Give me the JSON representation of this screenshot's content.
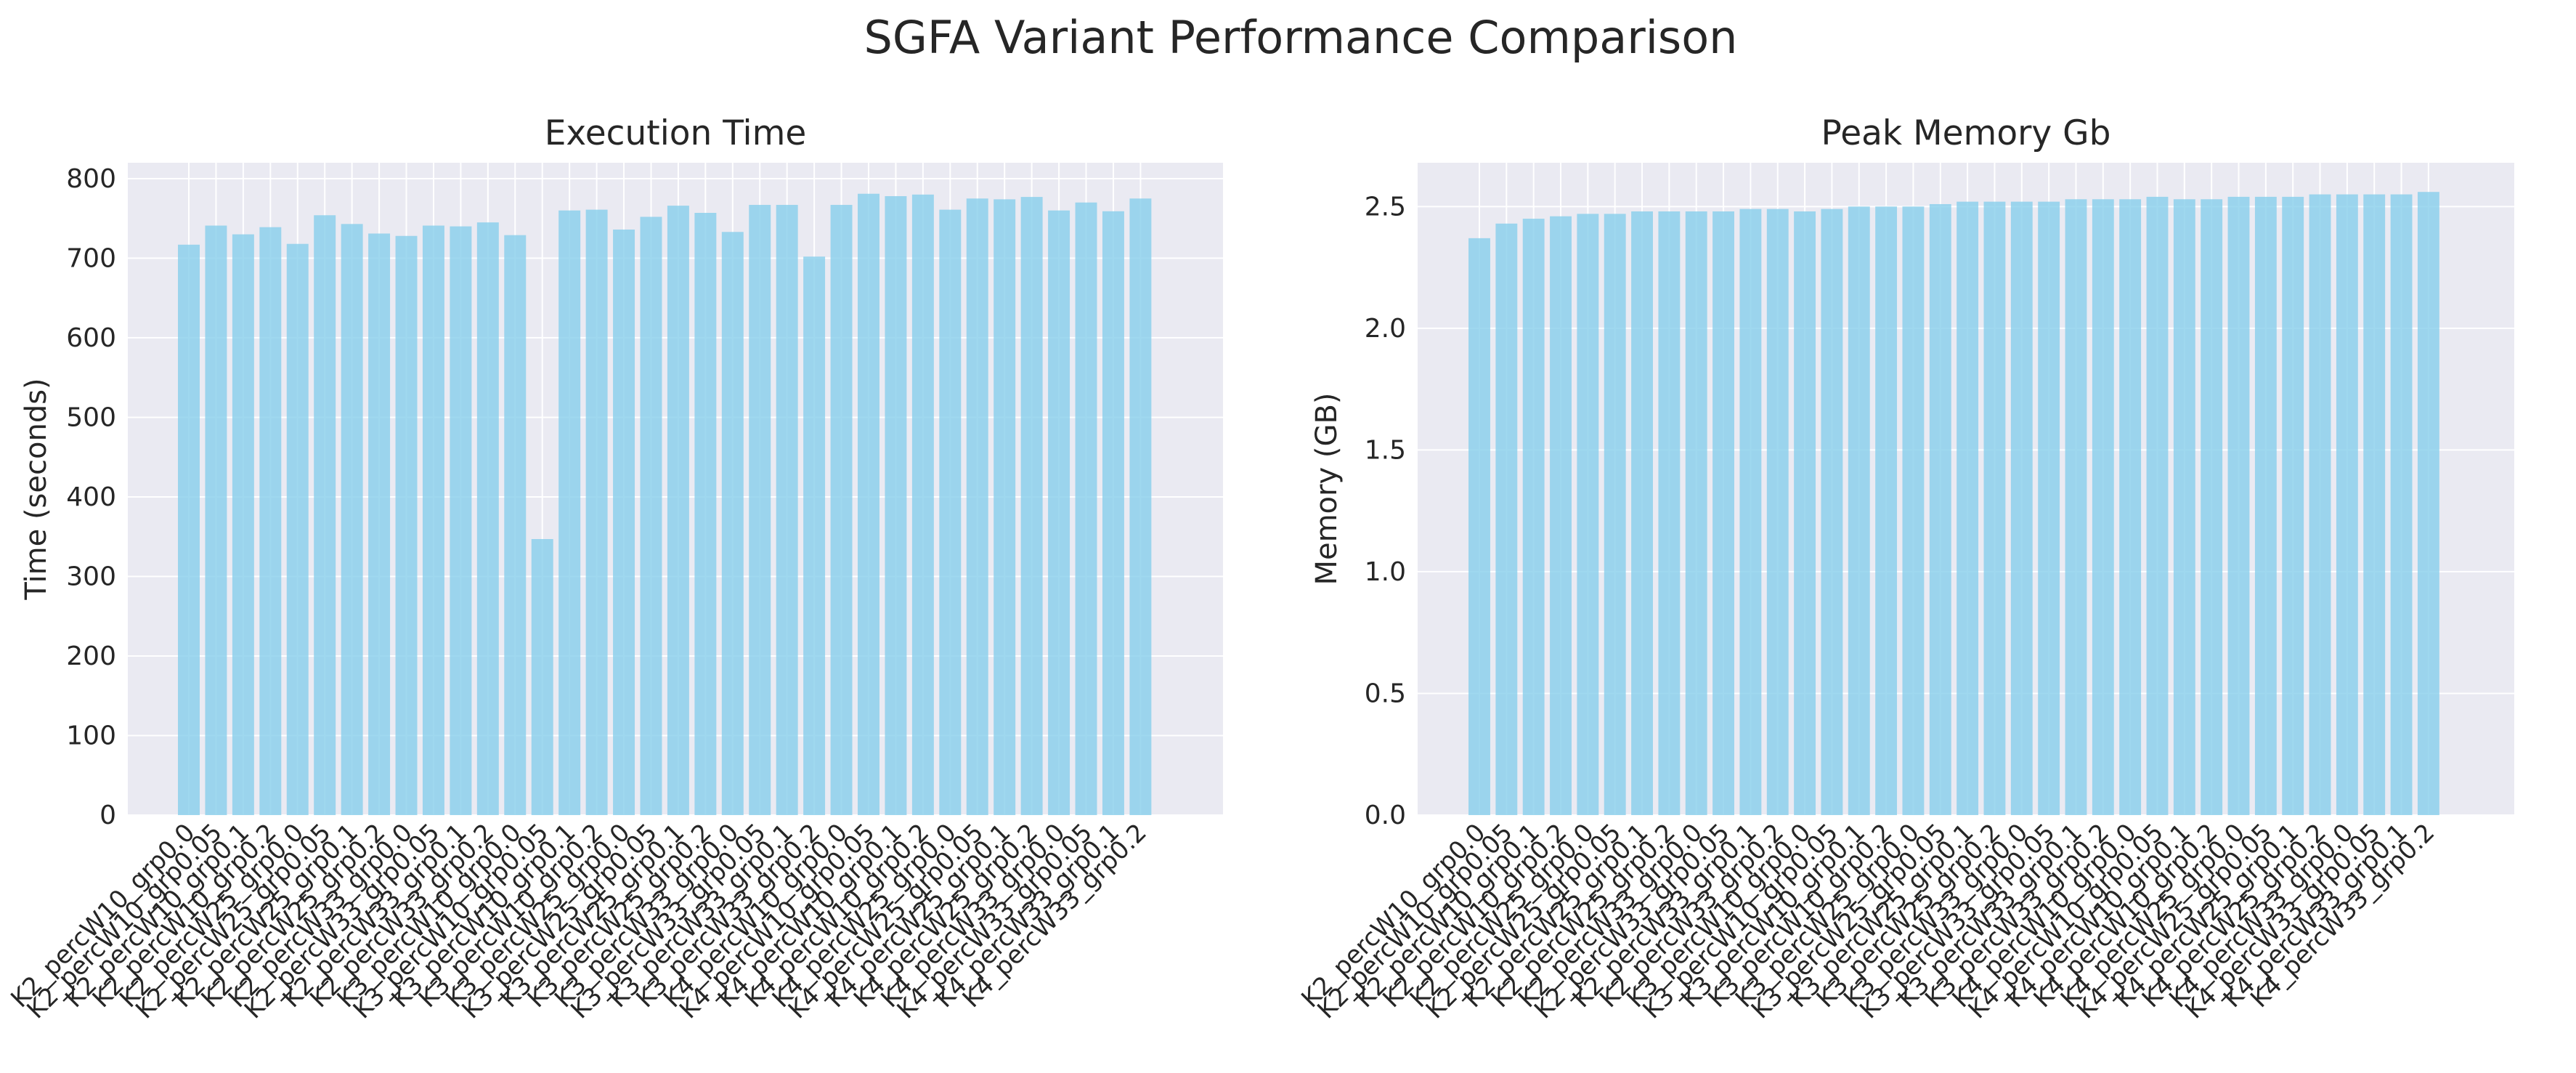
{
  "figure": {
    "title": "SGFA Variant Performance Comparison"
  },
  "chart_data": [
    {
      "type": "bar",
      "title": "Execution Time",
      "xlabel": "",
      "ylabel": "Time (seconds)",
      "ylim": [
        0,
        820
      ],
      "yticks": [
        0,
        100,
        200,
        300,
        400,
        500,
        600,
        700,
        800
      ],
      "grid": true,
      "color": "#87CEEB",
      "categories": [
        "K2_percW10_grp0.0",
        "K2_percW10_grp0.05",
        "K2_percW10_grp0.1",
        "K2_percW10_grp0.2",
        "K2_percW25_grp0.0",
        "K2_percW25_grp0.05",
        "K2_percW25_grp0.1",
        "K2_percW25_grp0.2",
        "K2_percW33_grp0.0",
        "K2_percW33_grp0.05",
        "K2_percW33_grp0.1",
        "K2_percW33_grp0.2",
        "K3_percW10_grp0.0",
        "K3_percW10_grp0.05",
        "K3_percW10_grp0.1",
        "K3_percW10_grp0.2",
        "K3_percW25_grp0.0",
        "K3_percW25_grp0.05",
        "K3_percW25_grp0.1",
        "K3_percW25_grp0.2",
        "K3_percW33_grp0.0",
        "K3_percW33_grp0.05",
        "K3_percW33_grp0.1",
        "K3_percW33_grp0.2",
        "K4_percW10_grp0.0",
        "K4_percW10_grp0.05",
        "K4_percW10_grp0.1",
        "K4_percW10_grp0.2",
        "K4_percW25_grp0.0",
        "K4_percW25_grp0.05",
        "K4_percW25_grp0.1",
        "K4_percW25_grp0.2",
        "K4_percW33_grp0.0",
        "K4_percW33_grp0.05",
        "K4_percW33_grp0.1",
        "K4_percW33_grp0.2"
      ],
      "values": [
        717,
        741,
        730,
        739,
        718,
        754,
        743,
        731,
        728,
        741,
        740,
        745,
        729,
        347,
        760,
        761,
        736,
        752,
        766,
        757,
        733,
        767,
        767,
        702,
        767,
        781,
        778,
        780,
        761,
        775,
        774,
        777,
        760,
        770,
        759,
        775
      ]
    },
    {
      "type": "bar",
      "title": "Peak Memory Gb",
      "xlabel": "",
      "ylabel": "Memory (GB)",
      "ylim": [
        0,
        2.68
      ],
      "yticks": [
        "0.0",
        "0.5",
        "1.0",
        "1.5",
        "2.0",
        "2.5"
      ],
      "grid": true,
      "color": "#87CEEB",
      "categories": [
        "K2_percW10_grp0.0",
        "K2_percW10_grp0.05",
        "K2_percW10_grp0.1",
        "K2_percW10_grp0.2",
        "K2_percW25_grp0.0",
        "K2_percW25_grp0.05",
        "K2_percW25_grp0.1",
        "K2_percW25_grp0.2",
        "K2_percW33_grp0.0",
        "K2_percW33_grp0.05",
        "K2_percW33_grp0.1",
        "K2_percW33_grp0.2",
        "K3_percW10_grp0.0",
        "K3_percW10_grp0.05",
        "K3_percW10_grp0.1",
        "K3_percW10_grp0.2",
        "K3_percW25_grp0.0",
        "K3_percW25_grp0.05",
        "K3_percW25_grp0.1",
        "K3_percW25_grp0.2",
        "K3_percW33_grp0.0",
        "K3_percW33_grp0.05",
        "K3_percW33_grp0.1",
        "K3_percW33_grp0.2",
        "K4_percW10_grp0.0",
        "K4_percW10_grp0.05",
        "K4_percW10_grp0.1",
        "K4_percW10_grp0.2",
        "K4_percW25_grp0.0",
        "K4_percW25_grp0.05",
        "K4_percW25_grp0.1",
        "K4_percW25_grp0.2",
        "K4_percW33_grp0.0",
        "K4_percW33_grp0.05",
        "K4_percW33_grp0.1",
        "K4_percW33_grp0.2"
      ],
      "values": [
        2.37,
        2.43,
        2.45,
        2.46,
        2.47,
        2.47,
        2.48,
        2.48,
        2.48,
        2.48,
        2.49,
        2.49,
        2.48,
        2.49,
        2.5,
        2.5,
        2.5,
        2.51,
        2.52,
        2.52,
        2.52,
        2.52,
        2.53,
        2.53,
        2.53,
        2.54,
        2.53,
        2.53,
        2.54,
        2.54,
        2.54,
        2.55,
        2.55,
        2.55,
        2.55,
        2.56
      ]
    }
  ]
}
